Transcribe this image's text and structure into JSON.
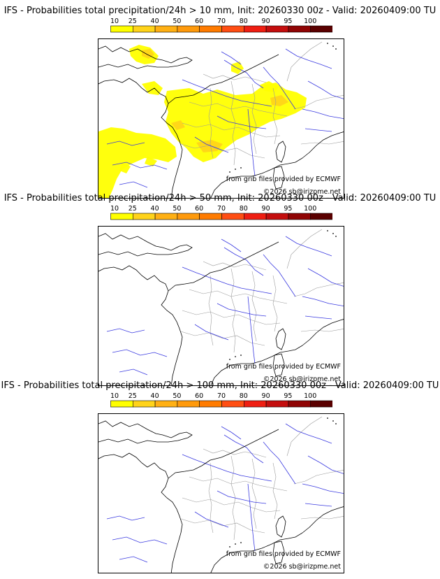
{
  "colorbar": {
    "ticks": [
      "10",
      "25",
      "40",
      "50",
      "60",
      "70",
      "80",
      "90",
      "95",
      "100"
    ],
    "colors": [
      "#ffff00",
      "#ffd31a",
      "#ffb014",
      "#ff9a0c",
      "#ff7b00",
      "#ff4e13",
      "#ef1e12",
      "#c40e0e",
      "#900404",
      "#5a0000"
    ]
  },
  "panels": [
    {
      "title": "IFS - Probabilities total precipitation/24h > 10 mm, Init: 20260330 00z - Valid: 20260409:00 TU",
      "credit_source": "from grib files provided by ECMWF",
      "credit_copyright": "©2026 sb@irizpme.net",
      "has_precip": true
    },
    {
      "title": "IFS - Probabilities total precipitation/24h > 50 mm, Init: 20260330 00z - Valid: 20260409:00 TU",
      "credit_source": "from grib files provided by ECMWF",
      "credit_copyright": "©2026 sb@irizpme.net",
      "has_precip": false
    },
    {
      "title": "IFS - Probabilities total precipitation/24h > 100 mm, Init: 20260330 00z - Valid: 20260409:00 TU",
      "credit_source": "from grib files provided by ECMWF",
      "credit_copyright": "©2026 sb@irizpme.net",
      "has_precip": false
    }
  ]
}
